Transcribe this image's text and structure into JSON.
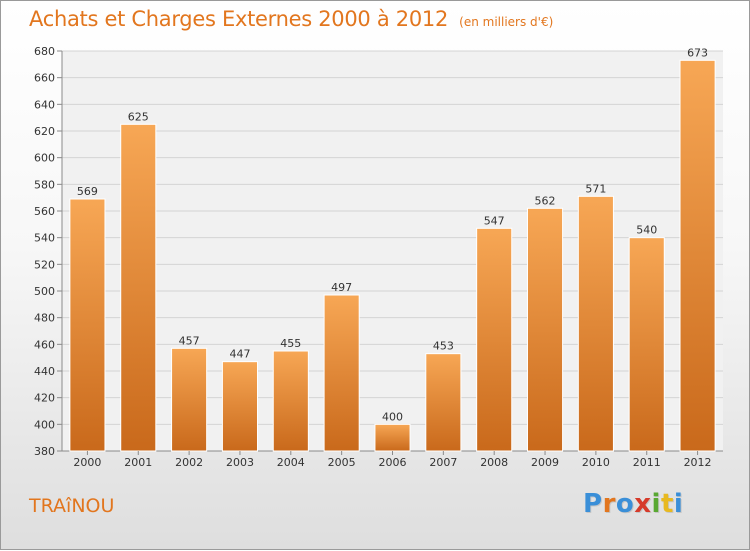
{
  "title": "Achats et Charges Externes 2000 à 2012",
  "unit": "(en milliers d'€)",
  "location": "TRAîNOU",
  "logo": {
    "text": "Proxiti",
    "letter_colors": [
      "#3a8fd8",
      "#e2761e",
      "#3a8fd8",
      "#d63a2a",
      "#59a832",
      "#e8b920",
      "#3a8fd8"
    ]
  },
  "colors": {
    "bar_top": "#f7a755",
    "bar_bottom": "#c9691b",
    "accent": "#e2761e"
  },
  "chart_data": {
    "type": "bar",
    "categories": [
      "2000",
      "2001",
      "2002",
      "2003",
      "2004",
      "2005",
      "2006",
      "2007",
      "2008",
      "2009",
      "2010",
      "2011",
      "2012"
    ],
    "values": [
      569,
      625,
      457,
      447,
      455,
      497,
      400,
      453,
      547,
      562,
      571,
      540,
      673
    ],
    "ylim": [
      380,
      680
    ],
    "yticks": [
      380,
      400,
      420,
      440,
      460,
      480,
      500,
      520,
      540,
      560,
      580,
      600,
      620,
      640,
      660,
      680
    ],
    "grid": true,
    "legend": "none"
  }
}
